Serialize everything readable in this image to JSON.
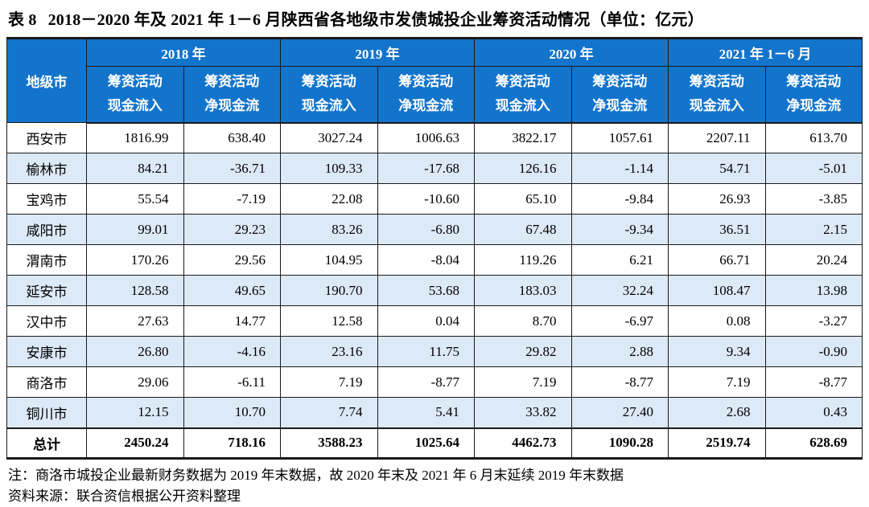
{
  "title": {
    "label": "表 8",
    "text": "2018－2020 年及 2021 年 1－6 月陕西省各地级市发债城投企业筹资活动情况（单位：亿元）"
  },
  "table": {
    "corner_header": "地级市",
    "year_groups": [
      {
        "label": "2018 年"
      },
      {
        "label": "2019 年"
      },
      {
        "label": "2020 年"
      },
      {
        "label": "2021 年 1－6 月"
      }
    ],
    "sub_headers": {
      "inflow_line1": "筹资活动",
      "inflow_line2": "现金流入",
      "net_line1": "筹资活动",
      "net_line2": "净现金流"
    },
    "rows": [
      {
        "city": "西安市",
        "values": [
          "1816.99",
          "638.40",
          "3027.24",
          "1006.63",
          "3822.17",
          "1057.61",
          "2207.11",
          "613.70"
        ]
      },
      {
        "city": "榆林市",
        "values": [
          "84.21",
          "-36.71",
          "109.33",
          "-17.68",
          "126.16",
          "-1.14",
          "54.71",
          "-5.01"
        ]
      },
      {
        "city": "宝鸡市",
        "values": [
          "55.54",
          "-7.19",
          "22.08",
          "-10.60",
          "65.10",
          "-9.84",
          "26.93",
          "-3.85"
        ]
      },
      {
        "city": "咸阳市",
        "values": [
          "99.01",
          "29.23",
          "83.26",
          "-6.80",
          "67.48",
          "-9.34",
          "36.51",
          "2.15"
        ]
      },
      {
        "city": "渭南市",
        "values": [
          "170.26",
          "29.56",
          "104.95",
          "-8.04",
          "119.26",
          "6.21",
          "66.71",
          "20.24"
        ]
      },
      {
        "city": "延安市",
        "values": [
          "128.58",
          "49.65",
          "190.70",
          "53.68",
          "183.03",
          "32.24",
          "108.47",
          "13.98"
        ]
      },
      {
        "city": "汉中市",
        "values": [
          "27.63",
          "14.77",
          "12.58",
          "0.04",
          "8.70",
          "-6.97",
          "0.08",
          "-3.27"
        ]
      },
      {
        "city": "安康市",
        "values": [
          "26.80",
          "-4.16",
          "23.16",
          "11.75",
          "29.82",
          "2.88",
          "9.34",
          "-0.90"
        ]
      },
      {
        "city": "商洛市",
        "values": [
          "29.06",
          "-6.11",
          "7.19",
          "-8.77",
          "7.19",
          "-8.77",
          "7.19",
          "-8.77"
        ]
      },
      {
        "city": "铜川市",
        "values": [
          "12.15",
          "10.70",
          "7.74",
          "5.41",
          "33.82",
          "27.40",
          "2.68",
          "0.43"
        ]
      }
    ],
    "total": {
      "label": "总计",
      "values": [
        "2450.24",
        "718.16",
        "3588.23",
        "1025.64",
        "4462.73",
        "1090.28",
        "2519.74",
        "628.69"
      ]
    }
  },
  "notes": {
    "note": "注：商洛市城投企业最新财务数据为 2019 年末数据，故 2020 年末及 2021 年 6 月末延续 2019 年末数据",
    "source": "资料来源：联合资信根据公开资料整理"
  },
  "colors": {
    "header_bg": "#1374CC",
    "row_alt_bg": "#DCE9F7",
    "grid_line": "#1a1a1a"
  }
}
